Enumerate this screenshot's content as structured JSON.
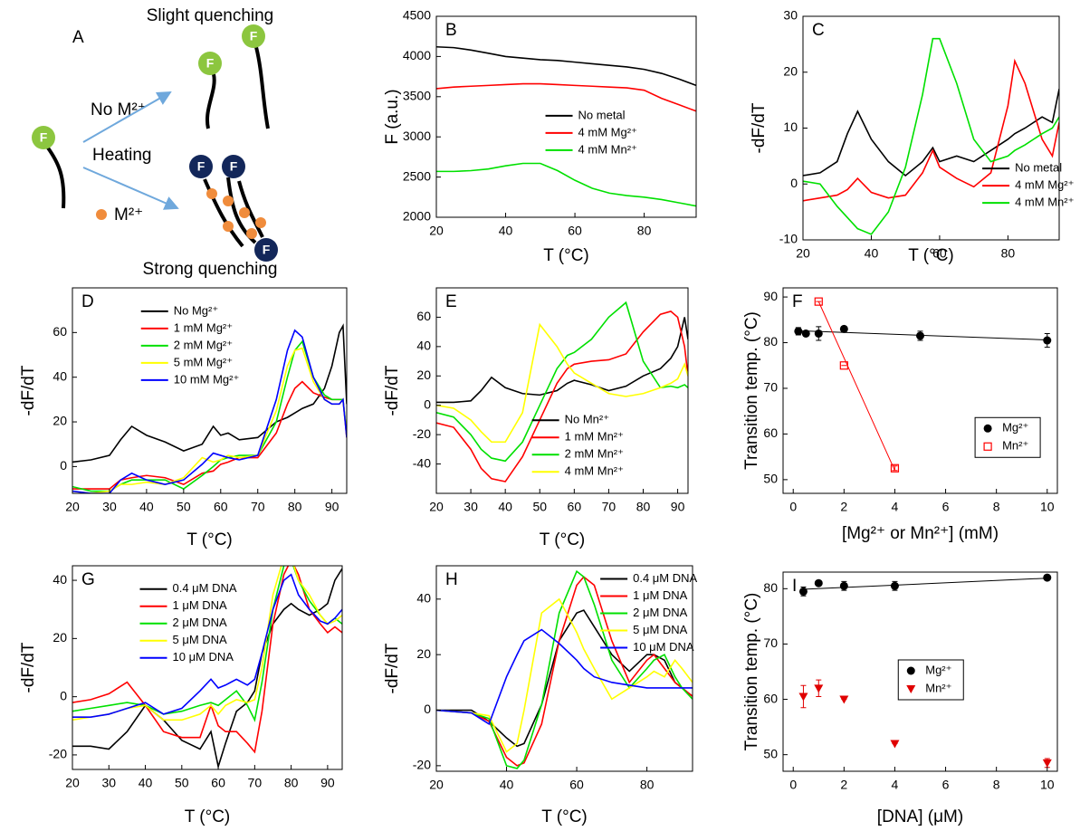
{
  "diagram": {
    "label": "A",
    "top_text": "Slight quenching",
    "arrow_top_text": "No M²⁺",
    "arrow_bottom_text": "Heating",
    "ion_text": "M²⁺",
    "bottom_text": "Strong quenching",
    "fluorophore": "F"
  },
  "chart_data": [
    {
      "type": "line",
      "label": "B",
      "x_label": "T (°C)",
      "y_label": "F (a.u.)",
      "xlim": [
        20,
        95
      ],
      "ylim": [
        2000,
        4500
      ],
      "xticks": [
        20,
        40,
        60,
        80
      ],
      "yticks": [
        2000,
        2500,
        3000,
        3500,
        4000,
        4500
      ],
      "legend": "center right",
      "x": [
        20,
        25,
        30,
        35,
        40,
        45,
        50,
        55,
        60,
        65,
        70,
        75,
        80,
        85,
        90,
        95
      ],
      "series": [
        {
          "name": "No metal",
          "color": "#000000",
          "values": [
            4120,
            4110,
            4080,
            4040,
            4000,
            3980,
            3960,
            3950,
            3930,
            3910,
            3890,
            3870,
            3840,
            3790,
            3720,
            3640
          ]
        },
        {
          "name": "4 mM Mg²⁺",
          "color": "#ff0000",
          "values": [
            3600,
            3620,
            3630,
            3640,
            3650,
            3660,
            3660,
            3650,
            3640,
            3630,
            3620,
            3610,
            3580,
            3480,
            3400,
            3320
          ]
        },
        {
          "name": "4 mM Mn²⁺",
          "color": "#00e000",
          "values": [
            2570,
            2570,
            2580,
            2600,
            2640,
            2670,
            2670,
            2580,
            2460,
            2360,
            2300,
            2270,
            2250,
            2220,
            2180,
            2140
          ]
        }
      ]
    },
    {
      "type": "line",
      "label": "C",
      "x_label": "T (°C)",
      "y_label": "-dF/dT",
      "xlim": [
        20,
        95
      ],
      "ylim": [
        -10,
        30
      ],
      "xticks": [
        20,
        40,
        60,
        80
      ],
      "yticks": [
        -10,
        0,
        10,
        20,
        30
      ],
      "legend": "lower right",
      "x": [
        20,
        25,
        30,
        33,
        36,
        40,
        45,
        50,
        55,
        58,
        60,
        65,
        70,
        75,
        80,
        82,
        85,
        90,
        93,
        95
      ],
      "series": [
        {
          "name": "No metal",
          "color": "#000000",
          "values": [
            1.5,
            2,
            4,
            9,
            13,
            8,
            4,
            1.5,
            4,
            6.5,
            4,
            5,
            4,
            6,
            8,
            9,
            10,
            12,
            11,
            17
          ]
        },
        {
          "name": "4 mM Mg²⁺",
          "color": "#ff0000",
          "values": [
            -3,
            -2.5,
            -2,
            -1,
            1,
            -1.5,
            -2.5,
            -2,
            2,
            6,
            3,
            1,
            -0.5,
            2,
            14,
            22,
            18,
            8,
            5,
            11
          ]
        },
        {
          "name": "4 mM Mn²⁺",
          "color": "#00e000",
          "values": [
            0.5,
            0,
            -4,
            -6,
            -8,
            -9,
            -5,
            3,
            16,
            26,
            26,
            18,
            8,
            4,
            5,
            6,
            7,
            9,
            10,
            12
          ]
        }
      ]
    },
    {
      "type": "line",
      "label": "D",
      "x_label": "T (°C)",
      "y_label": "-dF/dT",
      "xlim": [
        20,
        94
      ],
      "ylim": [
        -12,
        80
      ],
      "xticks": [
        20,
        30,
        40,
        50,
        60,
        70,
        80,
        90
      ],
      "yticks": [
        0,
        20,
        40,
        60
      ],
      "legend": "upper left",
      "x": [
        20,
        25,
        30,
        33,
        36,
        40,
        45,
        50,
        55,
        58,
        60,
        62,
        65,
        70,
        75,
        78,
        80,
        82,
        85,
        88,
        90,
        92,
        93,
        94
      ],
      "series": [
        {
          "name": "No Mg²⁺",
          "color": "#000000",
          "values": [
            2,
            3,
            5,
            12,
            18,
            14,
            11,
            7,
            10,
            18,
            14,
            15,
            12,
            13,
            20,
            22,
            24,
            26,
            28,
            35,
            45,
            60,
            63,
            28
          ]
        },
        {
          "name": "1 mM Mg²⁺",
          "color": "#ff0000",
          "values": [
            -10,
            -10,
            -10,
            -6,
            -5,
            -4,
            -5,
            -8,
            -3,
            -2,
            1,
            2,
            4,
            4,
            15,
            28,
            35,
            38,
            33,
            31,
            30,
            30,
            30,
            13
          ]
        },
        {
          "name": "2 mM Mg²⁺",
          "color": "#00e000",
          "values": [
            -9,
            -11,
            -11,
            -8,
            -6,
            -6,
            -6,
            -10,
            -4,
            0,
            3,
            4,
            5,
            5,
            20,
            40,
            52,
            56,
            40,
            32,
            30,
            30,
            30,
            15
          ]
        },
        {
          "name": "5 mM Mg²⁺",
          "color": "#ffff00",
          "values": [
            -11,
            -12,
            -11,
            -8,
            -8,
            -7,
            -8,
            -5,
            4,
            2,
            3,
            5,
            4,
            5,
            25,
            45,
            52,
            53,
            38,
            30,
            28,
            28,
            30,
            14
          ]
        },
        {
          "name": "10 mM Mg²⁺",
          "color": "#0000ff",
          "values": [
            -11,
            -12,
            -12,
            -6,
            -3,
            -6,
            -8,
            -6,
            1,
            6,
            5,
            4,
            3,
            5,
            30,
            52,
            61,
            58,
            40,
            30,
            28,
            28,
            30,
            13
          ]
        }
      ]
    },
    {
      "type": "line",
      "label": "E",
      "x_label": "T (°C)",
      "y_label": "-dF/dT",
      "xlim": [
        20,
        93
      ],
      "ylim": [
        -60,
        80
      ],
      "xticks": [
        20,
        30,
        40,
        50,
        60,
        70,
        80,
        90
      ],
      "yticks": [
        -40,
        -20,
        0,
        20,
        40,
        60
      ],
      "legend": "lower center",
      "x": [
        20,
        25,
        30,
        33,
        36,
        40,
        45,
        50,
        55,
        58,
        60,
        65,
        70,
        75,
        80,
        85,
        88,
        90,
        92,
        93
      ],
      "series": [
        {
          "name": "No Mn²⁺",
          "color": "#000000",
          "values": [
            2,
            2,
            3,
            10,
            19,
            12,
            8,
            7,
            10,
            15,
            17,
            14,
            10,
            13,
            20,
            25,
            32,
            40,
            60,
            45
          ]
        },
        {
          "name": "1 mM Mn²⁺",
          "color": "#ff0000",
          "values": [
            -12,
            -15,
            -30,
            -43,
            -50,
            -52,
            -35,
            -10,
            15,
            25,
            28,
            30,
            31,
            35,
            50,
            62,
            64,
            60,
            40,
            20
          ]
        },
        {
          "name": "2 mM Mn²⁺",
          "color": "#00e000",
          "values": [
            -5,
            -8,
            -20,
            -30,
            -36,
            -38,
            -25,
            0,
            25,
            34,
            36,
            45,
            60,
            70,
            30,
            12,
            13,
            12,
            14,
            12
          ]
        },
        {
          "name": "4 mM Mn²⁺",
          "color": "#ffff00",
          "values": [
            0,
            -2,
            -10,
            -18,
            -25,
            -25,
            -5,
            55,
            40,
            28,
            22,
            15,
            8,
            6,
            8,
            12,
            15,
            18,
            28,
            20
          ]
        }
      ]
    },
    {
      "type": "scatter",
      "label": "F",
      "x_label": "[Mg²⁺ or Mn²⁺] (mM)",
      "y_label": "Transition temp. (°C)",
      "xlim": [
        -0.4,
        10.4
      ],
      "ylim": [
        47,
        92
      ],
      "xticks": [
        0,
        2,
        4,
        6,
        8,
        10
      ],
      "yticks": [
        50,
        60,
        70,
        80,
        90
      ],
      "legend": "lower right",
      "series": [
        {
          "name": "Mg²⁺",
          "color": "#000000",
          "marker": "circle",
          "x": [
            0.2,
            0.5,
            1,
            2,
            5,
            10
          ],
          "values": [
            82.5,
            82,
            82,
            83,
            81.5,
            80.5
          ],
          "errors": [
            0.8,
            0,
            1.5,
            0,
            1,
            1.5
          ]
        },
        {
          "name": "Mn²⁺",
          "color": "#ff0000",
          "marker": "square-open",
          "x": [
            1,
            2,
            4
          ],
          "values": [
            89,
            75,
            52.5
          ],
          "errors": [
            0,
            0,
            0.5
          ]
        }
      ],
      "fits": [
        {
          "color": "#000000",
          "x": [
            0.2,
            10
          ],
          "values": [
            82.6,
            80.6
          ]
        },
        {
          "color": "#ff0000",
          "x": [
            1,
            4
          ],
          "values": [
            89,
            52
          ]
        }
      ]
    },
    {
      "type": "line",
      "label": "G",
      "x_label": "T (°C)",
      "y_label": "-dF/dT",
      "xlim": [
        20,
        94
      ],
      "ylim": [
        -25,
        45
      ],
      "xticks": [
        20,
        30,
        40,
        50,
        60,
        70,
        80,
        90
      ],
      "yticks": [
        -20,
        0,
        20,
        40
      ],
      "legend": "upper left",
      "x": [
        20,
        25,
        30,
        35,
        40,
        45,
        50,
        55,
        58,
        60,
        62,
        65,
        68,
        70,
        72,
        75,
        78,
        80,
        82,
        85,
        88,
        90,
        92,
        94
      ],
      "series": [
        {
          "name": "0.4 μM DNA",
          "color": "#000000",
          "values": [
            -17,
            -17,
            -18,
            -12,
            -3,
            -8,
            -15,
            -18,
            -12,
            -24,
            -16,
            -5,
            -2,
            2,
            15,
            25,
            30,
            32,
            30,
            28,
            30,
            32,
            40,
            44
          ]
        },
        {
          "name": "1 μM DNA",
          "color": "#ff0000",
          "values": [
            -2,
            -1,
            1,
            5,
            -3,
            -12,
            -14,
            -14,
            -3,
            -10,
            -12,
            -12,
            -16,
            -19,
            -5,
            25,
            42,
            47,
            42,
            30,
            25,
            22,
            24,
            22
          ]
        },
        {
          "name": "2 μM DNA",
          "color": "#00e000",
          "values": [
            -5,
            -4,
            -3,
            -2,
            -3,
            -6,
            -5,
            -3,
            -2,
            -3,
            -1,
            2,
            -3,
            -8,
            5,
            30,
            45,
            47,
            40,
            33,
            28,
            25,
            27,
            25
          ]
        },
        {
          "name": "5 μM DNA",
          "color": "#ffff00",
          "values": [
            -8,
            -7,
            -6,
            -4,
            -3,
            -8,
            -8,
            -6,
            -3,
            -6,
            -3,
            -1,
            -2,
            -1,
            10,
            35,
            48,
            48,
            40,
            35,
            28,
            25,
            26,
            28
          ]
        },
        {
          "name": "10 μM DNA",
          "color": "#0000ff",
          "values": [
            -7,
            -7,
            -6,
            -4,
            -2,
            -6,
            -4,
            2,
            6,
            3,
            4,
            6,
            4,
            6,
            15,
            30,
            40,
            42,
            35,
            30,
            26,
            25,
            27,
            30
          ]
        }
      ]
    },
    {
      "type": "line",
      "label": "H",
      "x_label": "T (°C)",
      "y_label": "-dF/dT",
      "xlim": [
        20,
        93
      ],
      "ylim": [
        -22,
        52
      ],
      "xticks": [
        20,
        40,
        60,
        80
      ],
      "yticks": [
        -20,
        0,
        20,
        40
      ],
      "legend": "upper right",
      "x": [
        20,
        30,
        35,
        40,
        43,
        45,
        50,
        55,
        60,
        62,
        65,
        70,
        75,
        80,
        82,
        85,
        88,
        90,
        93
      ],
      "series": [
        {
          "name": "0.4 μM DNA",
          "color": "#000000",
          "values": [
            0,
            0,
            -4,
            -10,
            -13,
            -12,
            2,
            25,
            35,
            36,
            30,
            20,
            14,
            20,
            20,
            18,
            10,
            8,
            5
          ]
        },
        {
          "name": "1 μM DNA",
          "color": "#ff0000",
          "values": [
            0,
            -1,
            -4,
            -17,
            -20,
            -19,
            -5,
            25,
            45,
            48,
            45,
            25,
            10,
            18,
            20,
            15,
            10,
            8,
            5
          ]
        },
        {
          "name": "2 μM DNA",
          "color": "#00e000",
          "values": [
            0,
            -1,
            -3,
            -20,
            -21,
            -18,
            2,
            35,
            50,
            48,
            38,
            18,
            8,
            15,
            18,
            20,
            12,
            8,
            4
          ]
        },
        {
          "name": "5 μM DNA",
          "color": "#ffff00",
          "values": [
            0,
            -1,
            -2,
            -15,
            -12,
            0,
            35,
            40,
            28,
            22,
            15,
            4,
            8,
            12,
            14,
            12,
            18,
            15,
            10
          ]
        },
        {
          "name": "10 μM DNA",
          "color": "#0000ff",
          "values": [
            0,
            -1,
            -5,
            12,
            20,
            25,
            29,
            24,
            18,
            15,
            12,
            10,
            9,
            8,
            8,
            8,
            8,
            8,
            8
          ]
        }
      ]
    },
    {
      "type": "scatter",
      "label": "I",
      "x_label": "[DNA] (μM)",
      "y_label": "Transition temp. (°C)",
      "xlim": [
        -0.4,
        10.4
      ],
      "ylim": [
        47,
        83
      ],
      "xticks": [
        0,
        2,
        4,
        6,
        8,
        10
      ],
      "yticks": [
        50,
        60,
        70,
        80
      ],
      "legend": "center right",
      "series": [
        {
          "name": "Mg²⁺",
          "color": "#000000",
          "marker": "circle",
          "x": [
            0.4,
            1,
            2,
            4,
            10
          ],
          "values": [
            79.5,
            81,
            80.5,
            80.5,
            82
          ],
          "errors": [
            0.8,
            0,
            0.8,
            0.8,
            0
          ]
        },
        {
          "name": "Mn²⁺",
          "color": "#e00000",
          "marker": "triangle-down",
          "x": [
            0.4,
            1,
            2,
            4,
            10
          ],
          "values": [
            60.5,
            62,
            60,
            52,
            48.5
          ],
          "errors": [
            2,
            1.5,
            0,
            0,
            0.8
          ]
        }
      ],
      "fits": [
        {
          "color": "#000000",
          "x": [
            0.4,
            10
          ],
          "values": [
            79.9,
            81.9
          ]
        }
      ]
    }
  ]
}
